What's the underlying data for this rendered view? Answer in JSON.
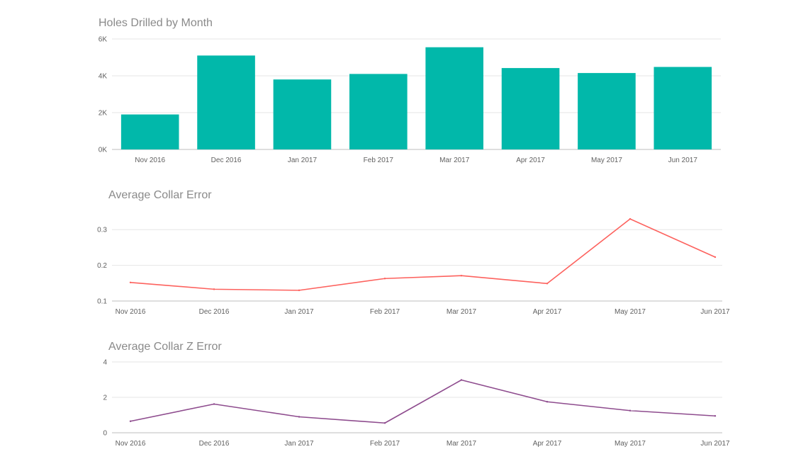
{
  "chart_data": [
    {
      "type": "bar",
      "title": "Holes Drilled by Month",
      "categories": [
        "Nov 2016",
        "Dec 2016",
        "Jan 2017",
        "Feb 2017",
        "Mar 2017",
        "Apr 2017",
        "May 2017",
        "Jun 2017"
      ],
      "values": [
        1900,
        5100,
        3800,
        4100,
        5550,
        4420,
        4150,
        4480
      ],
      "ylim": [
        0,
        6000
      ],
      "yticks": [
        0,
        2000,
        4000,
        6000
      ],
      "ytick_labels": [
        "0K",
        "2K",
        "4K",
        "6K"
      ],
      "grid": true,
      "color": "#01B8AA"
    },
    {
      "type": "line",
      "title": "Average Collar Error",
      "categories": [
        "Nov 2016",
        "Dec 2016",
        "Jan 2017",
        "Feb 2017",
        "Mar 2017",
        "Apr 2017",
        "May 2017",
        "Jun 2017"
      ],
      "values": [
        0.152,
        0.133,
        0.13,
        0.163,
        0.171,
        0.149,
        0.33,
        0.223
      ],
      "ylim": [
        0.1,
        0.35
      ],
      "yticks": [
        0.1,
        0.2,
        0.3
      ],
      "ytick_labels": [
        "0.1",
        "0.2",
        "0.3"
      ],
      "grid": true,
      "color": "#FD625E"
    },
    {
      "type": "line",
      "title": "Average Collar Z Error",
      "categories": [
        "Nov 2016",
        "Dec 2016",
        "Jan 2017",
        "Feb 2017",
        "Mar 2017",
        "Apr 2017",
        "May 2017",
        "Jun 2017"
      ],
      "values": [
        0.65,
        1.62,
        0.9,
        0.55,
        2.98,
        1.75,
        1.25,
        0.95
      ],
      "ylim": [
        0,
        4
      ],
      "yticks": [
        0,
        2,
        4
      ],
      "ytick_labels": [
        "0",
        "2",
        "4"
      ],
      "grid": true,
      "color": "#8E4C8E"
    }
  ]
}
